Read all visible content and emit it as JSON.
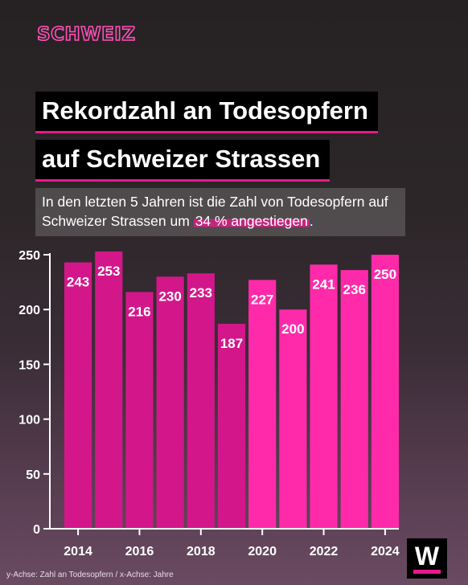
{
  "section": "SCHWEIZ",
  "title_line1": "Rekordzahl an Todesopfern",
  "title_line2": "auf Schweizer Strassen",
  "subtitle_before": "In den letzten 5 Jahren ist die Zahl von Todesopfern auf Schweizer Strassen um ",
  "subtitle_highlight": "34 % angestiegen",
  "subtitle_after": ".",
  "footnote": "y-Achse: Zahl an Todesopfern / x-Achse: Jahre",
  "logo_letter": "W",
  "colors": {
    "bar_old": "#d3178a",
    "bar_recent": "#ff2aaa",
    "accent": "#e8198b"
  },
  "chart_data": {
    "type": "bar",
    "title": "",
    "xlabel": "Jahre",
    "ylabel": "Zahl an Todesopfern",
    "categories": [
      "2014",
      "2015",
      "2016",
      "2017",
      "2018",
      "2019",
      "2020",
      "2021",
      "2022",
      "2023",
      "2024"
    ],
    "values": [
      243,
      253,
      216,
      230,
      233,
      187,
      227,
      200,
      241,
      236,
      250
    ],
    "highlighted_from": "2020",
    "ylim": [
      0,
      250
    ],
    "yticks": [
      0,
      50,
      100,
      150,
      200,
      250
    ],
    "xtick_labels": [
      "2014",
      "2016",
      "2018",
      "2020",
      "2022",
      "2024"
    ],
    "data_labels": true,
    "grid": false
  }
}
